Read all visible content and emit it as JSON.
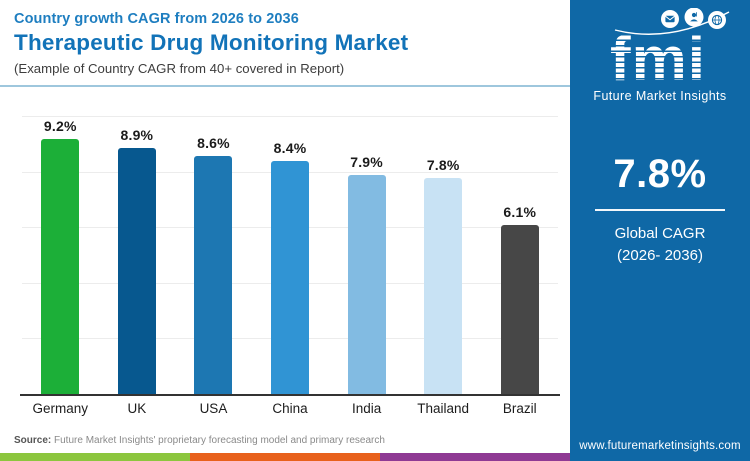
{
  "header": {
    "kicker": "Country growth CAGR from 2026 to 2036",
    "title": "Therapeutic Drug Monitoring Market",
    "subtitle": "(Example of Country CAGR from 40+ covered in Report)"
  },
  "chart_data": {
    "type": "bar",
    "title": "Therapeutic Drug Monitoring Market — Country growth CAGR from 2026 to 2036",
    "categories": [
      "Germany",
      "UK",
      "USA",
      "China",
      "India",
      "Thailand",
      "Brazil"
    ],
    "values": [
      9.2,
      8.9,
      8.6,
      8.4,
      7.9,
      7.8,
      6.1
    ],
    "value_labels": [
      "9.2%",
      "8.9%",
      "8.6%",
      "8.4%",
      "7.9%",
      "7.8%",
      "6.1%"
    ],
    "bar_colors": [
      "#1caf38",
      "#07588f",
      "#1d77b2",
      "#3094d4",
      "#82bbe2",
      "#c8e2f4",
      "#474747"
    ],
    "xlabel": "",
    "ylabel": "",
    "ylim": [
      0,
      10
    ],
    "gridlines": [
      2,
      4,
      6,
      8,
      10
    ],
    "grid": "horizontal, unlabeled",
    "legend": "none",
    "data_labels": "percent above each bar"
  },
  "source": {
    "label": "Source:",
    "text": " Future Market Insights' proprietary forecasting model and primary research"
  },
  "sidebar": {
    "logo_text": "fmi",
    "logo_subtext": "Future Market Insights",
    "logo_icons": [
      "envelope-icon",
      "person-icon",
      "globe-icon"
    ],
    "stat_value": "7.8%",
    "stat_label_line1": "Global CAGR",
    "stat_label_line2": "(2026- 2036)",
    "website": "www.futuremarketinsights.com",
    "bg_color": "#0f68a6"
  },
  "colors": {
    "kicker_blue": "#1e7ec0",
    "title_blue": "#1273b8",
    "header_rule": "#9ec7dd",
    "axis": "#333333",
    "footer_stripes": [
      "#8cc63e",
      "#e8611c",
      "#8f3a94"
    ]
  }
}
